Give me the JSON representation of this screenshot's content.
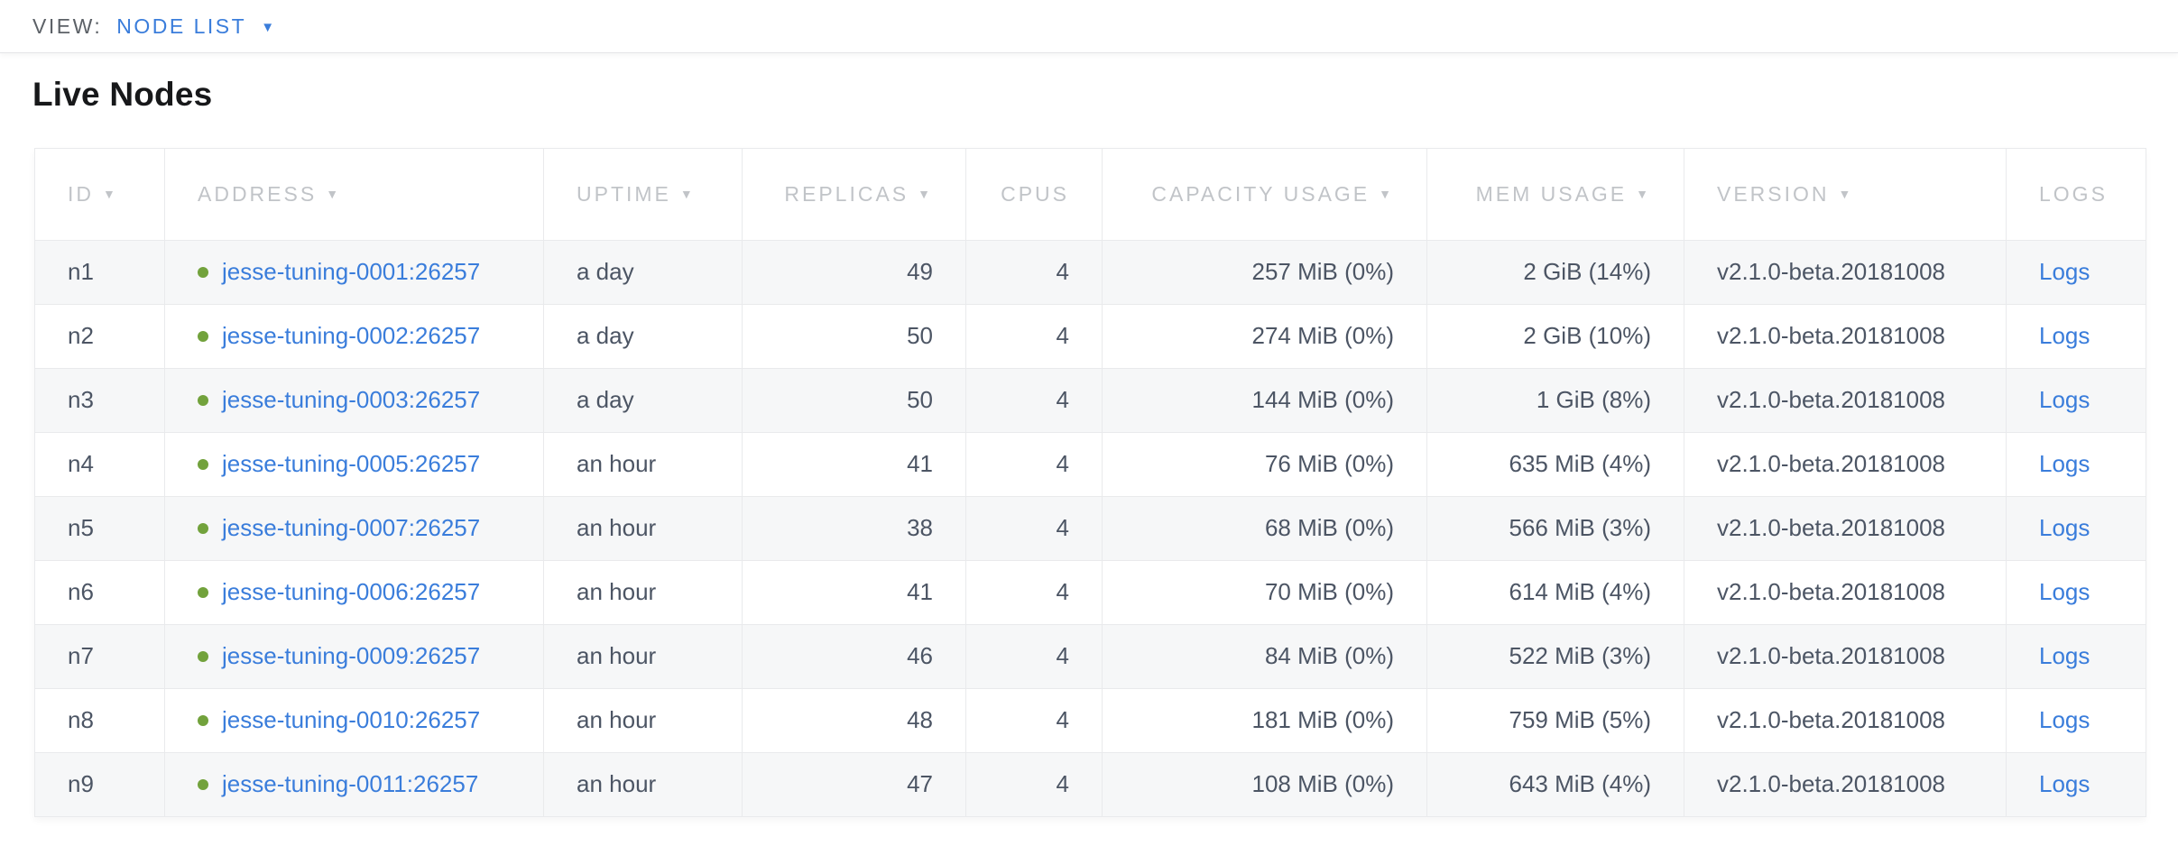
{
  "view_bar": {
    "label": "VIEW:",
    "selected": "NODE LIST"
  },
  "page": {
    "title": "Live Nodes"
  },
  "icons": {
    "dropdown": "▼",
    "sort_desc": "▼",
    "status_dot": "●"
  },
  "colors": {
    "accent_blue": "#3a7ddb",
    "healthy_dot_green": "#72a23c",
    "header_gray": "#c1c4c8",
    "body_text": "#4c5564",
    "alt_row_bg": "#f6f7f8"
  },
  "table": {
    "logs_label": "Logs",
    "columns": [
      {
        "key": "id",
        "label": "ID",
        "sortable": true
      },
      {
        "key": "address",
        "label": "ADDRESS",
        "sortable": true
      },
      {
        "key": "uptime",
        "label": "UPTIME",
        "sortable": true
      },
      {
        "key": "replicas",
        "label": "REPLICAS",
        "sortable": true
      },
      {
        "key": "cpus",
        "label": "CPUS",
        "sortable": false
      },
      {
        "key": "capacity",
        "label": "CAPACITY USAGE",
        "sortable": true
      },
      {
        "key": "mem",
        "label": "MEM USAGE",
        "sortable": true
      },
      {
        "key": "version",
        "label": "VERSION",
        "sortable": true
      },
      {
        "key": "logs",
        "label": "LOGS",
        "sortable": false
      }
    ],
    "rows": [
      {
        "id": "n1",
        "address": "jesse-tuning-0001:26257",
        "status": "healthy",
        "uptime": "a day",
        "replicas": "49",
        "cpus": "4",
        "capacity": "257 MiB (0%)",
        "mem": "2 GiB (14%)",
        "version": "v2.1.0-beta.20181008"
      },
      {
        "id": "n2",
        "address": "jesse-tuning-0002:26257",
        "status": "healthy",
        "uptime": "a day",
        "replicas": "50",
        "cpus": "4",
        "capacity": "274 MiB (0%)",
        "mem": "2 GiB (10%)",
        "version": "v2.1.0-beta.20181008"
      },
      {
        "id": "n3",
        "address": "jesse-tuning-0003:26257",
        "status": "healthy",
        "uptime": "a day",
        "replicas": "50",
        "cpus": "4",
        "capacity": "144 MiB (0%)",
        "mem": "1 GiB (8%)",
        "version": "v2.1.0-beta.20181008"
      },
      {
        "id": "n4",
        "address": "jesse-tuning-0005:26257",
        "status": "healthy",
        "uptime": "an hour",
        "replicas": "41",
        "cpus": "4",
        "capacity": "76 MiB (0%)",
        "mem": "635 MiB (4%)",
        "version": "v2.1.0-beta.20181008"
      },
      {
        "id": "n5",
        "address": "jesse-tuning-0007:26257",
        "status": "healthy",
        "uptime": "an hour",
        "replicas": "38",
        "cpus": "4",
        "capacity": "68 MiB (0%)",
        "mem": "566 MiB (3%)",
        "version": "v2.1.0-beta.20181008"
      },
      {
        "id": "n6",
        "address": "jesse-tuning-0006:26257",
        "status": "healthy",
        "uptime": "an hour",
        "replicas": "41",
        "cpus": "4",
        "capacity": "70 MiB (0%)",
        "mem": "614 MiB (4%)",
        "version": "v2.1.0-beta.20181008"
      },
      {
        "id": "n7",
        "address": "jesse-tuning-0009:26257",
        "status": "healthy",
        "uptime": "an hour",
        "replicas": "46",
        "cpus": "4",
        "capacity": "84 MiB (0%)",
        "mem": "522 MiB (3%)",
        "version": "v2.1.0-beta.20181008"
      },
      {
        "id": "n8",
        "address": "jesse-tuning-0010:26257",
        "status": "healthy",
        "uptime": "an hour",
        "replicas": "48",
        "cpus": "4",
        "capacity": "181 MiB (0%)",
        "mem": "759 MiB (5%)",
        "version": "v2.1.0-beta.20181008"
      },
      {
        "id": "n9",
        "address": "jesse-tuning-0011:26257",
        "status": "healthy",
        "uptime": "an hour",
        "replicas": "47",
        "cpus": "4",
        "capacity": "108 MiB (0%)",
        "mem": "643 MiB (4%)",
        "version": "v2.1.0-beta.20181008"
      }
    ]
  }
}
